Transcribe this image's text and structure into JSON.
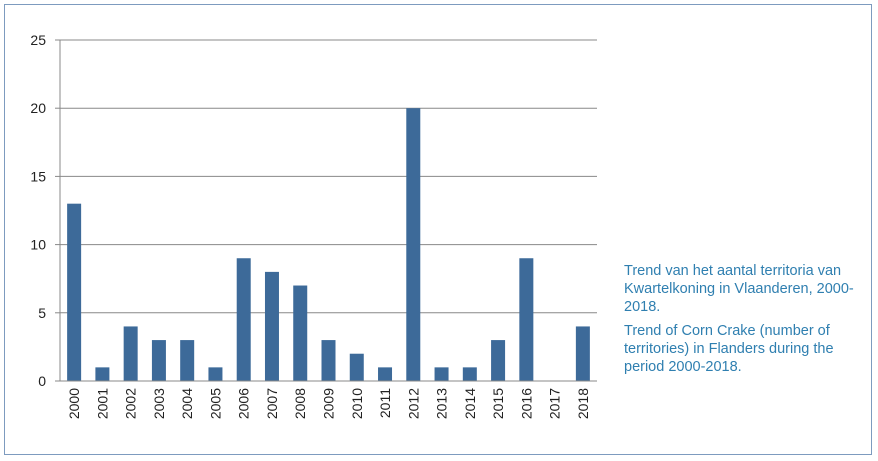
{
  "chart_data": {
    "type": "bar",
    "categories": [
      "2000",
      "2001",
      "2002",
      "2003",
      "2004",
      "2005",
      "2006",
      "2007",
      "2008",
      "2009",
      "2010",
      "2011",
      "2012",
      "2013",
      "2014",
      "2015",
      "2016",
      "2017",
      "2018"
    ],
    "values": [
      13,
      1,
      4,
      3,
      3,
      1,
      9,
      8,
      7,
      3,
      2,
      1,
      20,
      1,
      1,
      3,
      9,
      0,
      4
    ],
    "ylim": [
      0,
      25
    ],
    "yticks": [
      0,
      5,
      10,
      15,
      20,
      25
    ],
    "grid": true,
    "bar_color": "#3d6a99",
    "grid_color": "#888888"
  },
  "caption": {
    "dutch": "Trend van het aantal territoria van Kwartelkoning in Vlaanderen, 2000-2018.",
    "english": "Trend of Corn Crake (number of territories) in Flanders during the period 2000-2018.",
    "color": "#2f7fb0"
  }
}
